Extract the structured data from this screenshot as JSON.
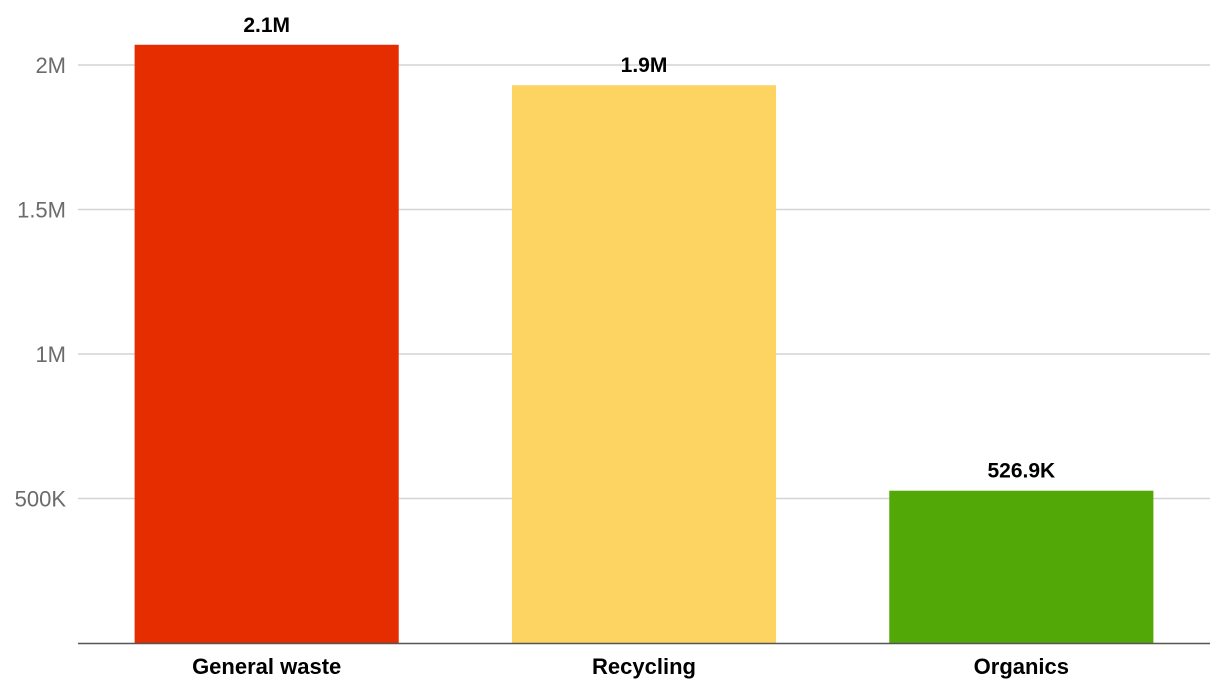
{
  "chart_data": {
    "type": "bar",
    "categories": [
      "General waste",
      "Recycling",
      "Organics"
    ],
    "values": [
      2070000,
      1930000,
      526900
    ],
    "data_labels": [
      "2.1M",
      "1.9M",
      "526.9K"
    ],
    "colors": [
      "#e52d00",
      "#fdd462",
      "#52a806"
    ],
    "title": "",
    "xlabel": "",
    "ylabel": "",
    "ylim": [
      0,
      2000000
    ],
    "yticks": [
      500000,
      1000000,
      1500000,
      2000000
    ],
    "ytick_labels": [
      "500K",
      "1M",
      "1.5M",
      "2M"
    ],
    "grid": true,
    "legend": "none"
  }
}
